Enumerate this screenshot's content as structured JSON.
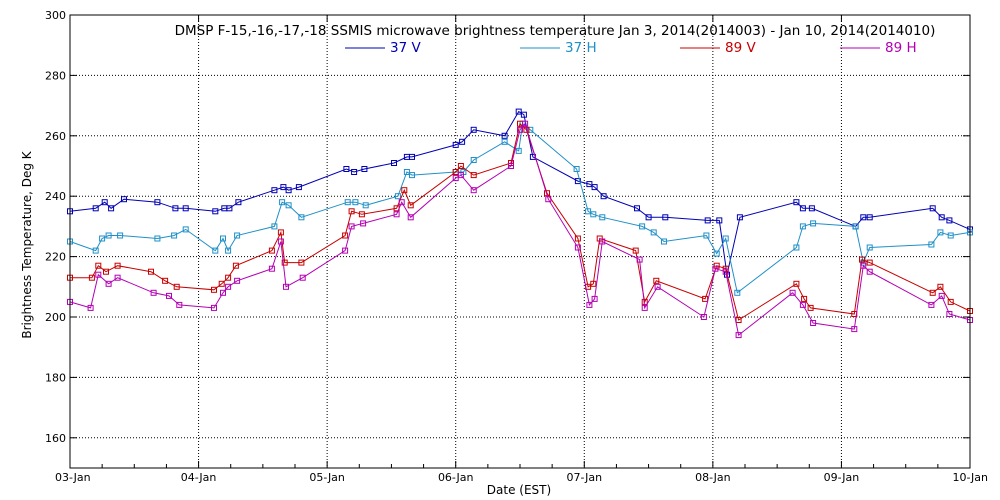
{
  "chart_data": {
    "type": "line",
    "title": "DMSP F-15,-16,-17,-18 SSMIS microwave brightness temperature Jan  3, 2014(2014003) - Jan 10, 2014(2014010)",
    "xlabel": "Date (EST)",
    "ylabel": "Brightness Temperature, Deg K",
    "xlim": [
      3.0,
      10.0
    ],
    "ylim": [
      150,
      300
    ],
    "x_unit": "day of January 2014",
    "x_ticks": [
      {
        "value": 3,
        "label": "03-Jan"
      },
      {
        "value": 4,
        "label": "04-Jan"
      },
      {
        "value": 5,
        "label": "05-Jan"
      },
      {
        "value": 6,
        "label": "06-Jan"
      },
      {
        "value": 7,
        "label": "07-Jan"
      },
      {
        "value": 8,
        "label": "08-Jan"
      },
      {
        "value": 9,
        "label": "09-Jan"
      },
      {
        "value": 10,
        "label": "10-Jan"
      }
    ],
    "y_ticks": [
      160,
      180,
      200,
      220,
      240,
      260,
      280,
      300
    ],
    "grid": "dotted",
    "legend_position": "top-center",
    "series": [
      {
        "name": "37 V",
        "color": "#0000b4",
        "x": [
          3.0,
          3.2,
          3.27,
          3.32,
          3.42,
          3.68,
          3.82,
          3.9,
          4.13,
          4.2,
          4.24,
          4.31,
          4.59,
          4.66,
          4.7,
          4.78,
          5.15,
          5.21,
          5.29,
          5.52,
          5.62,
          5.66,
          6.0,
          6.05,
          6.14,
          6.38,
          6.49,
          6.53,
          6.6,
          6.95,
          7.04,
          7.08,
          7.15,
          7.41,
          7.5,
          7.63,
          7.96,
          8.05,
          8.11,
          8.21,
          8.65,
          8.7,
          8.77,
          9.11,
          9.17,
          9.22,
          9.71,
          9.78,
          9.84,
          10.0
        ],
        "y": [
          235,
          236,
          238,
          236,
          239,
          238,
          236,
          236,
          235,
          236,
          236,
          238,
          242,
          243,
          242,
          243,
          249,
          248,
          249,
          251,
          253,
          253,
          257,
          258,
          262,
          260,
          268,
          267,
          253,
          245,
          244,
          243,
          240,
          236,
          233,
          233,
          232,
          232,
          214,
          233,
          238,
          236,
          236,
          230,
          233,
          233,
          236,
          233,
          232,
          229
        ]
      },
      {
        "name": "37 H",
        "color": "#1f90c8",
        "x": [
          3.0,
          3.2,
          3.25,
          3.3,
          3.39,
          3.68,
          3.81,
          3.9,
          4.13,
          4.19,
          4.23,
          4.3,
          4.59,
          4.65,
          4.7,
          4.8,
          5.16,
          5.22,
          5.3,
          5.55,
          5.62,
          5.66,
          6.0,
          6.06,
          6.14,
          6.38,
          6.49,
          6.52,
          6.58,
          6.94,
          7.03,
          7.07,
          7.14,
          7.45,
          7.54,
          7.62,
          7.95,
          8.03,
          8.1,
          8.19,
          8.65,
          8.7,
          8.78,
          9.11,
          9.17,
          9.22,
          9.7,
          9.77,
          9.85,
          10.0
        ],
        "y": [
          225,
          222,
          226,
          227,
          227,
          226,
          227,
          229,
          222,
          226,
          222,
          227,
          230,
          238,
          237,
          233,
          238,
          238,
          237,
          240,
          248,
          247,
          248,
          248,
          252,
          258,
          255,
          264,
          262,
          249,
          235,
          234,
          233,
          230,
          228,
          225,
          227,
          221,
          226,
          208,
          223,
          230,
          231,
          230,
          218,
          223,
          224,
          228,
          227,
          228
        ]
      },
      {
        "name": "89 V",
        "color": "#c80000",
        "x": [
          3.0,
          3.17,
          3.22,
          3.28,
          3.37,
          3.63,
          3.74,
          3.83,
          4.12,
          4.18,
          4.23,
          4.29,
          4.57,
          4.64,
          4.67,
          4.8,
          5.14,
          5.19,
          5.27,
          5.54,
          5.6,
          5.65,
          6.0,
          6.04,
          6.14,
          6.43,
          6.5,
          6.55,
          6.71,
          6.95,
          7.03,
          7.07,
          7.12,
          7.4,
          7.47,
          7.56,
          7.94,
          8.03,
          8.1,
          8.2,
          8.65,
          8.71,
          8.76,
          9.1,
          9.16,
          9.22,
          9.71,
          9.77,
          9.85,
          10.0
        ],
        "y": [
          213,
          213,
          217,
          215,
          217,
          215,
          212,
          210,
          209,
          211,
          213,
          217,
          222,
          228,
          218,
          218,
          227,
          235,
          234,
          236,
          242,
          237,
          248,
          250,
          247,
          251,
          264,
          262,
          241,
          226,
          210,
          211,
          226,
          222,
          205,
          212,
          206,
          217,
          216,
          199,
          211,
          206,
          203,
          201,
          219,
          218,
          208,
          210,
          205,
          202
        ]
      },
      {
        "name": "89 H",
        "color": "#b400b4",
        "x": [
          3.0,
          3.16,
          3.22,
          3.3,
          3.37,
          3.65,
          3.77,
          3.85,
          4.12,
          4.19,
          4.23,
          4.3,
          4.57,
          4.64,
          4.68,
          4.81,
          5.14,
          5.19,
          5.28,
          5.54,
          5.58,
          5.65,
          6.0,
          6.04,
          6.14,
          6.43,
          6.5,
          6.54,
          6.72,
          6.95,
          7.04,
          7.08,
          7.14,
          7.43,
          7.47,
          7.57,
          7.93,
          8.02,
          8.1,
          8.2,
          8.62,
          8.7,
          8.78,
          9.1,
          9.17,
          9.22,
          9.7,
          9.78,
          9.84,
          10.0
        ],
        "y": [
          205,
          203,
          214,
          211,
          213,
          208,
          207,
          204,
          203,
          208,
          210,
          212,
          216,
          225,
          210,
          213,
          222,
          230,
          231,
          234,
          238,
          233,
          246,
          247,
          242,
          250,
          262,
          264,
          239,
          223,
          204,
          206,
          225,
          219,
          203,
          210,
          200,
          216,
          215,
          194,
          208,
          204,
          198,
          196,
          217,
          215,
          204,
          207,
          201,
          199
        ]
      }
    ]
  }
}
